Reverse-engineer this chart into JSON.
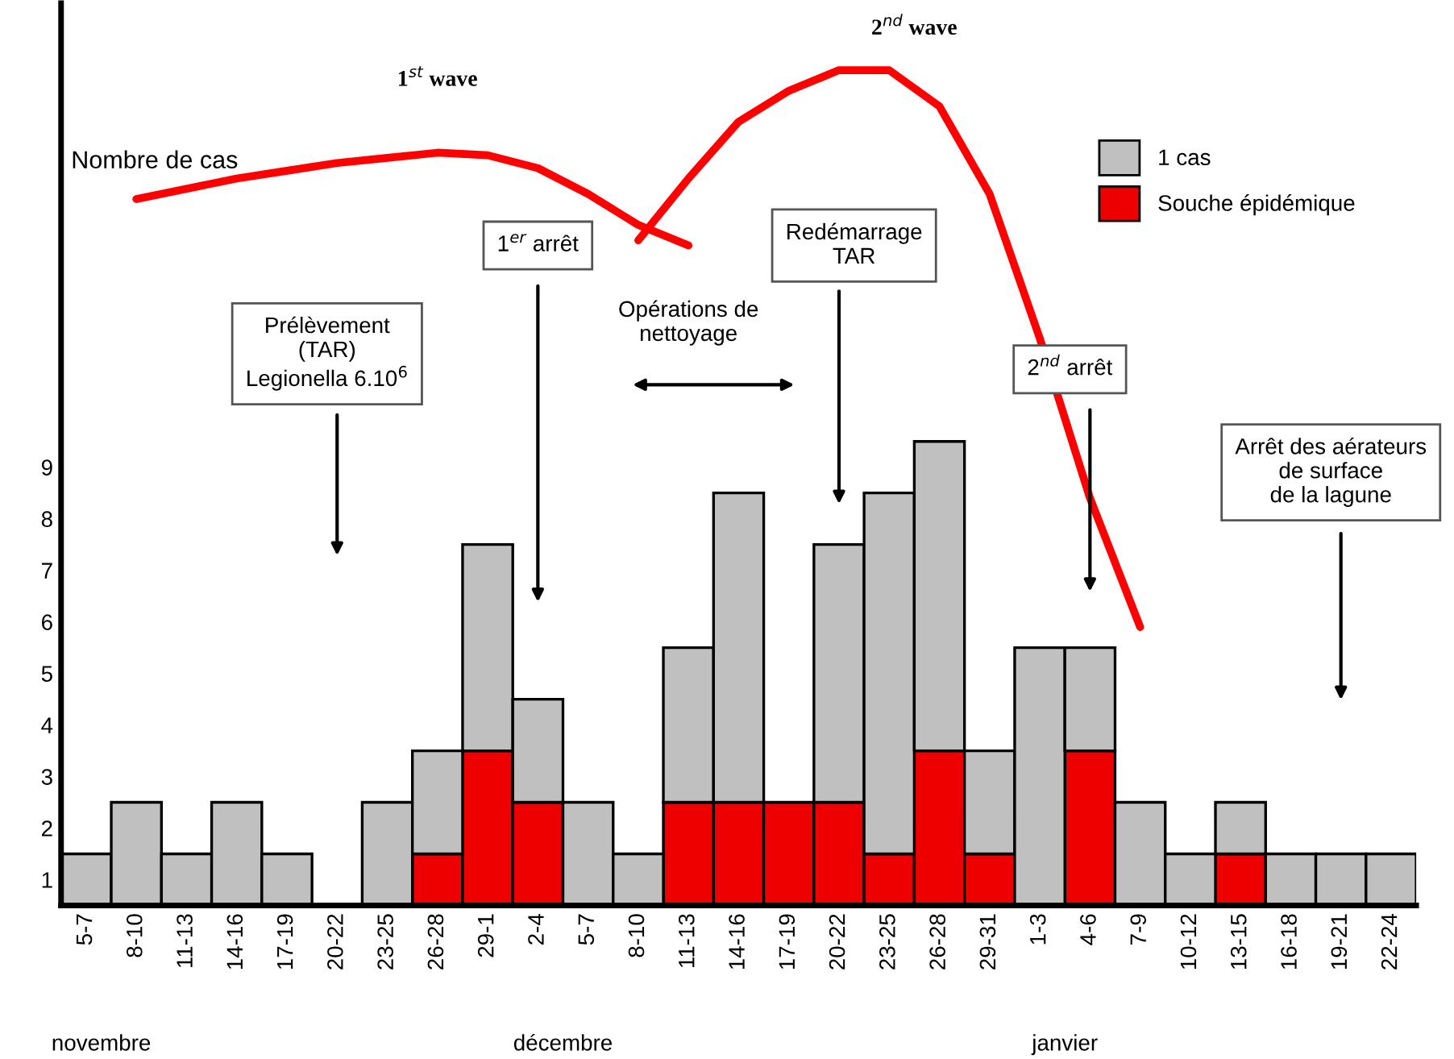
{
  "chart_data": {
    "type": "bar",
    "stacked": true,
    "ylabel": "Nombre de cas",
    "categories": [
      "5-7",
      "8-10",
      "11-13",
      "14-16",
      "17-19",
      "20-22",
      "23-25",
      "26-28",
      "29-1",
      "2-4",
      "5-7",
      "8-10",
      "11-13",
      "14-16",
      "17-19",
      "20-22",
      "23-25",
      "26-28",
      "29-31",
      "1-3",
      "4-6",
      "7-9",
      "10-12",
      "13-15",
      "16-18",
      "19-21",
      "22-24"
    ],
    "series": [
      {
        "name": "Souche épidémique",
        "color": "#ee0000",
        "values": [
          0,
          0,
          0,
          0,
          0,
          0,
          0,
          1,
          3,
          2,
          0,
          0,
          2,
          2,
          2,
          2,
          1,
          3,
          1,
          0,
          3,
          0,
          0,
          1,
          0,
          0,
          0
        ]
      },
      {
        "name": "1 cas",
        "color": "#c0c0c0",
        "values": [
          1,
          2,
          1,
          2,
          1,
          0,
          2,
          2,
          4,
          2,
          2,
          1,
          3,
          6,
          0,
          5,
          7,
          6,
          2,
          5,
          2,
          2,
          1,
          1,
          1,
          1,
          1
        ]
      },
      {
        "type": "line",
        "color": "#ff0000",
        "values": [
          null,
          13.7,
          13.9,
          14.1,
          14.25,
          14.4,
          14.5,
          14.6,
          14.55,
          14.3,
          13.8,
          13.2,
          12.8,
          null,
          null,
          null,
          null,
          null,
          null,
          null,
          null,
          null,
          null,
          null,
          null,
          null,
          null
        ]
      },
      {
        "type": "line",
        "color": "#ff0000",
        "values": [
          null,
          null,
          null,
          null,
          null,
          null,
          null,
          null,
          null,
          null,
          null,
          12.9,
          14.1,
          15.2,
          15.8,
          16.2,
          16.2,
          15.5,
          13.8,
          11.0,
          7.9,
          5.4,
          null,
          null,
          null,
          null,
          null
        ]
      }
    ],
    "ylim": [
      0,
      17.5
    ],
    "yticks": [
      {
        "value": 0.5,
        "label": "1"
      },
      {
        "value": 1.5,
        "label": "2"
      },
      {
        "value": 2.5,
        "label": "3"
      },
      {
        "value": 3.5,
        "label": "4"
      },
      {
        "value": 4.5,
        "label": "5"
      },
      {
        "value": 5.5,
        "label": "6"
      },
      {
        "value": 6.5,
        "label": "7"
      },
      {
        "value": 7.5,
        "label": "8"
      },
      {
        "value": 8.5,
        "label": "9"
      }
    ],
    "legend": "top right",
    "annotations": [
      "1$^{st}$ wave",
      "2$^{nd}$ wave",
      "Prélèvement\n(TAR)\nLegionella 6.10$^{6}$",
      "1$^{er}$ arrêt",
      "Opérations de\nnettoyage",
      "Redémarrage\nTAR",
      "2$^{nd}$ arrêt",
      "Arrêt des aérateurs\nde surface\nde la lagune",
      "novembre",
      "décembre",
      "janvier"
    ]
  }
}
